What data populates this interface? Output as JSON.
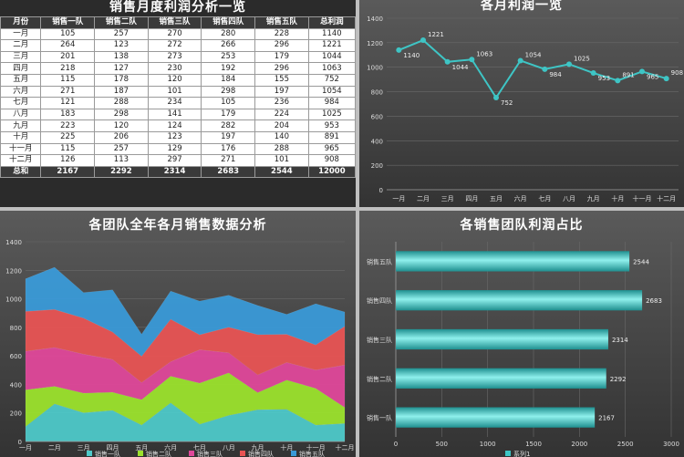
{
  "table": {
    "title": "销售月度利润分析一览",
    "headers": [
      "月份",
      "销售一队",
      "销售二队",
      "销售三队",
      "销售四队",
      "销售五队",
      "总利润"
    ],
    "rows": [
      [
        "一月",
        "105",
        "257",
        "270",
        "280",
        "228",
        "1140"
      ],
      [
        "二月",
        "264",
        "123",
        "272",
        "266",
        "296",
        "1221"
      ],
      [
        "三月",
        "201",
        "138",
        "273",
        "253",
        "179",
        "1044"
      ],
      [
        "四月",
        "218",
        "127",
        "230",
        "192",
        "296",
        "1063"
      ],
      [
        "五月",
        "115",
        "178",
        "120",
        "184",
        "155",
        "752"
      ],
      [
        "六月",
        "271",
        "187",
        "101",
        "298",
        "197",
        "1054"
      ],
      [
        "七月",
        "121",
        "288",
        "234",
        "105",
        "236",
        "984"
      ],
      [
        "八月",
        "183",
        "298",
        "141",
        "179",
        "224",
        "1025"
      ],
      [
        "九月",
        "223",
        "120",
        "124",
        "282",
        "204",
        "953"
      ],
      [
        "十月",
        "225",
        "206",
        "123",
        "197",
        "140",
        "891"
      ],
      [
        "十一月",
        "115",
        "257",
        "129",
        "176",
        "288",
        "965"
      ],
      [
        "十二月",
        "126",
        "113",
        "297",
        "271",
        "101",
        "908"
      ]
    ],
    "total": [
      "总和",
      "2167",
      "2292",
      "2314",
      "2683",
      "2544",
      "12000"
    ]
  },
  "chart_data": [
    {
      "type": "line",
      "title": "各月利润一览",
      "categories": [
        "一月",
        "二月",
        "三月",
        "四月",
        "五月",
        "六月",
        "七月",
        "八月",
        "九月",
        "十月",
        "十一月",
        "十二月"
      ],
      "values": [
        1140,
        1221,
        1044,
        1063,
        752,
        1054,
        984,
        1025,
        953,
        891,
        965,
        908
      ],
      "ylim": [
        0,
        1400
      ],
      "yticks": [
        0,
        200,
        400,
        600,
        800,
        1000,
        1200,
        1400
      ],
      "grid": true,
      "color": "#3ec5c5"
    },
    {
      "type": "area",
      "stacked": true,
      "title": "各团队全年各月销售数据分析",
      "categories": [
        "一月",
        "二月",
        "三月",
        "四月",
        "五月",
        "六月",
        "七月",
        "八月",
        "九月",
        "十月",
        "十一月",
        "十二月"
      ],
      "ylim": [
        0,
        1400
      ],
      "yticks": [
        0,
        200,
        400,
        600,
        800,
        1000,
        1200,
        1400
      ],
      "grid": true,
      "legend_position": "bottom",
      "series": [
        {
          "name": "销售一队",
          "values": [
            105,
            264,
            201,
            218,
            115,
            271,
            121,
            183,
            223,
            225,
            115,
            126
          ],
          "color": "#4ec9c9"
        },
        {
          "name": "销售二队",
          "values": [
            257,
            123,
            138,
            127,
            178,
            187,
            288,
            298,
            120,
            206,
            257,
            113
          ],
          "color": "#9be22d"
        },
        {
          "name": "销售三队",
          "values": [
            270,
            272,
            273,
            230,
            120,
            101,
            234,
            141,
            124,
            123,
            129,
            297
          ],
          "color": "#e0489a"
        },
        {
          "name": "销售四队",
          "values": [
            280,
            266,
            253,
            192,
            184,
            298,
            105,
            179,
            282,
            197,
            176,
            271
          ],
          "color": "#e85454"
        },
        {
          "name": "销售五队",
          "values": [
            228,
            296,
            179,
            296,
            155,
            197,
            236,
            224,
            204,
            140,
            288,
            101
          ],
          "color": "#3a9ad8"
        }
      ]
    },
    {
      "type": "bar",
      "orientation": "horizontal",
      "title": "各销售团队利润占比",
      "categories": [
        "销售一队",
        "销售二队",
        "销售三队",
        "销售四队",
        "销售五队"
      ],
      "values": [
        2167,
        2292,
        2314,
        2683,
        2544
      ],
      "xlim": [
        0,
        3000
      ],
      "xticks": [
        0,
        500,
        1000,
        1500,
        2000,
        2500,
        3000
      ],
      "legend": "系列1",
      "color": "#3ec5c5"
    }
  ]
}
